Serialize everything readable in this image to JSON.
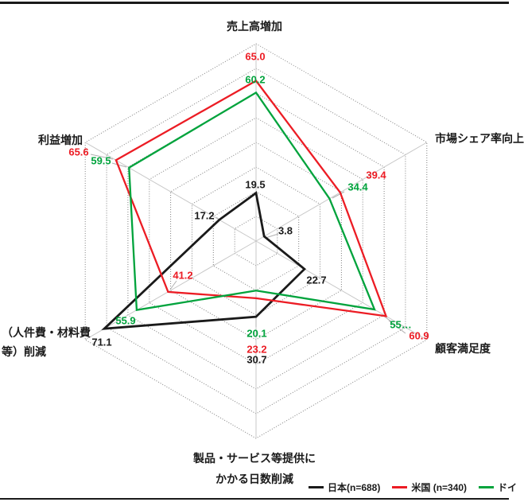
{
  "chart_data": {
    "type": "radar",
    "title": "",
    "r_max": 80,
    "r_step": 10,
    "grid": "dotted concentric hexagons with light solid spokes",
    "legend_position": "bottom-right",
    "colors": {
      "japan": "#1a1a1a",
      "usa": "#ec1c24",
      "germany": "#00a33c",
      "gridline": "#7f7f7f",
      "spoke": "#c8c8c8",
      "leader": "#b0b0b0"
    },
    "axes": [
      {
        "id": "sales-increase",
        "lines": [
          "売上高増加"
        ]
      },
      {
        "id": "market-share",
        "lines": [
          "市場シェア率向上"
        ]
      },
      {
        "id": "customer-satisfaction",
        "lines": [
          "顧客満足度"
        ]
      },
      {
        "id": "lead-time-reduction",
        "lines": [
          "製品・サービス等提供に",
          "かかる日数削減"
        ]
      },
      {
        "id": "cost-reduction",
        "lines": [
          "（人件費・材料費",
          "等）削減"
        ]
      },
      {
        "id": "profit-increase",
        "lines": [
          "利益増加"
        ]
      }
    ],
    "series": [
      {
        "name": "日本(n=688)",
        "color": "#1a1a1a",
        "values": [
          19.5,
          3.8,
          22.7,
          30.7,
          71.1,
          17.2
        ],
        "labels": [
          "19.5",
          "3.8",
          "22.7",
          "30.7",
          "71.1",
          "17.2"
        ]
      },
      {
        "name": "米国 (n=340)",
        "color": "#ec1c24",
        "values": [
          65.0,
          39.4,
          60.9,
          23.2,
          41.2,
          65.6
        ],
        "labels": [
          "65.0",
          "39.4",
          "60.9",
          "23.2",
          "41.2",
          "65.6"
        ]
      },
      {
        "name": "ドイ",
        "color": "#00a33c",
        "values": [
          60.2,
          34.4,
          55.5,
          20.1,
          55.9,
          59.5
        ],
        "labels": [
          "60.2",
          "34.4",
          "55…",
          "20.1",
          "55.9",
          "59.5"
        ]
      }
    ]
  }
}
